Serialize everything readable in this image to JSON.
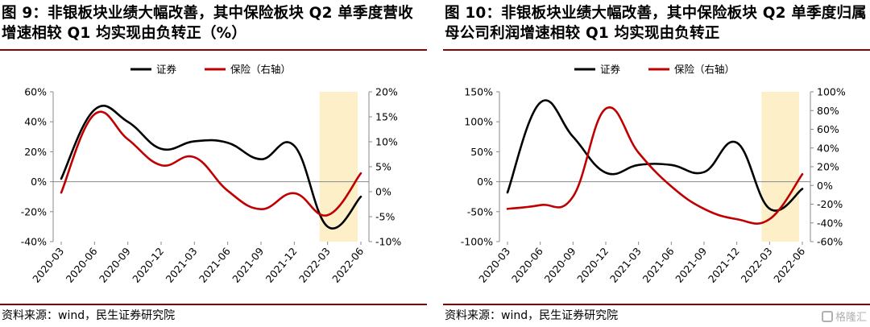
{
  "panels": [
    {
      "title": "图 9：非银板块业绩大幅改善，其中保险板块 Q2 单季度营收增速相较 Q1 均实现由负转正（%）",
      "source": "资料来源：wind，民生证券研究院"
    },
    {
      "title": "图 10：非银板块业绩大幅改善，其中保险板块 Q2 单季度归属母公司利润增速相较 Q1 均实现由负转正",
      "source": "资料来源：wind，民生证券研究院"
    }
  ],
  "watermark": "格隆汇",
  "colors": {
    "securities": "#000000",
    "insurance": "#c00000",
    "highlight": "#fdefc8",
    "rule": "#8b0000"
  },
  "chart_data": [
    {
      "type": "line",
      "categories": [
        "2020-03",
        "2020-06",
        "2020-09",
        "2020-12",
        "2021-03",
        "2021-06",
        "2021-09",
        "2021-12",
        "2022-03",
        "2022-06"
      ],
      "series": [
        {
          "name": "证券",
          "axis": "left",
          "color": "#000000",
          "values": [
            2,
            48,
            40,
            22,
            27,
            26,
            15,
            24,
            -30,
            -10
          ]
        },
        {
          "name": "保险（右轴）",
          "axis": "right",
          "color": "#c00000",
          "values": [
            -0.2,
            15.5,
            10.5,
            5.3,
            6.9,
            0.2,
            -3.5,
            -0.3,
            -4.7,
            3.7
          ]
        }
      ],
      "y_left": {
        "min": -40,
        "max": 60,
        "ticks": [
          -40,
          -20,
          0,
          20,
          40,
          60
        ],
        "tick_labels": [
          "-40%",
          "-20%",
          "0%",
          "20%",
          "40%",
          "60%"
        ]
      },
      "y_right": {
        "min": -10,
        "max": 20,
        "ticks": [
          -10,
          -5,
          0,
          5,
          10,
          15,
          20
        ],
        "tick_labels": [
          "-10%",
          "-5%",
          "0%",
          "5%",
          "10%",
          "15%",
          "20%"
        ]
      },
      "highlight": {
        "from": 8,
        "to": 9
      },
      "legend_position": "top-center",
      "grid": false
    },
    {
      "type": "line",
      "categories": [
        "2020-03",
        "2020-06",
        "2020-09",
        "2020-12",
        "2021-03",
        "2021-06",
        "2021-09",
        "2021-12",
        "2022-03",
        "2022-06"
      ],
      "series": [
        {
          "name": "证券",
          "axis": "left",
          "color": "#000000",
          "values": [
            -18,
            132,
            75,
            15,
            28,
            28,
            16,
            65,
            -45,
            -12
          ]
        },
        {
          "name": "保险（右轴）",
          "axis": "right",
          "color": "#c00000",
          "values": [
            -25,
            -21,
            -12,
            82,
            35,
            -1,
            -25,
            -36,
            -36,
            12
          ]
        }
      ],
      "y_left": {
        "min": -100,
        "max": 150,
        "ticks": [
          -100,
          -50,
          0,
          50,
          100,
          150
        ],
        "tick_labels": [
          "-100%",
          "-50%",
          "0%",
          "50%",
          "100%",
          "150%"
        ]
      },
      "y_right": {
        "min": -60,
        "max": 100,
        "ticks": [
          -60,
          -40,
          -20,
          0,
          20,
          40,
          60,
          80,
          100
        ],
        "tick_labels": [
          "-60%",
          "-40%",
          "-20%",
          "0%",
          "20%",
          "40%",
          "60%",
          "80%",
          "100%"
        ]
      },
      "highlight": {
        "from": 8,
        "to": 9
      },
      "legend_position": "top-center",
      "grid": false
    }
  ]
}
